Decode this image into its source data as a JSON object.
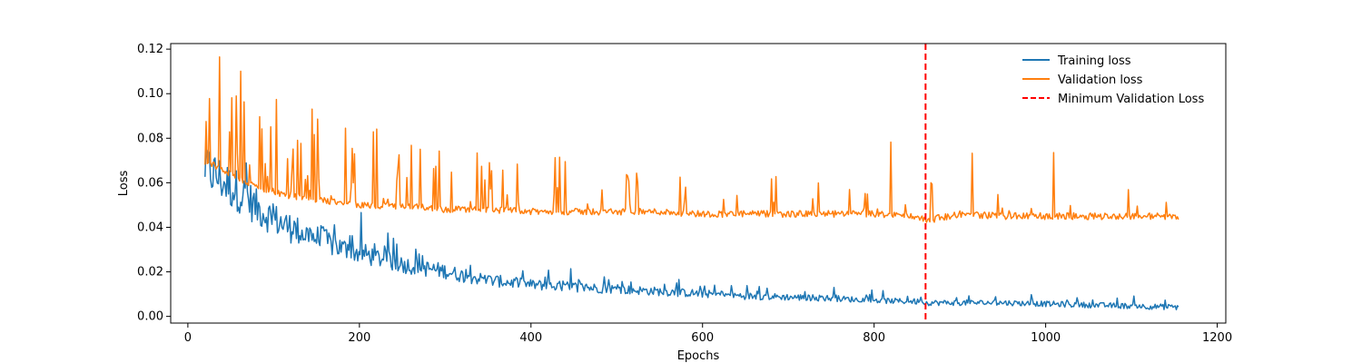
{
  "chart_data": {
    "type": "line",
    "title": "",
    "xlabel": "Epochs",
    "ylabel": "Loss",
    "xlim": [
      -20,
      1210
    ],
    "ylim": [
      -0.003,
      0.1225
    ],
    "xticks": [
      0,
      200,
      400,
      600,
      800,
      1000,
      1200
    ],
    "yticks": [
      0.0,
      0.02,
      0.04,
      0.06,
      0.08,
      0.1,
      0.12
    ],
    "xtick_labels": [
      "0",
      "200",
      "400",
      "600",
      "800",
      "1000",
      "1200"
    ],
    "ytick_labels": [
      "0.00",
      "0.02",
      "0.04",
      "0.06",
      "0.08",
      "0.10",
      "0.12"
    ],
    "grid": false,
    "legend_position": "upper right",
    "series": [
      {
        "name": "Training loss",
        "color": "#1f77b4",
        "x": [
          20,
          30,
          40,
          50,
          60,
          70,
          80,
          100,
          120,
          140,
          160,
          180,
          200,
          220,
          250,
          280,
          300,
          320,
          350,
          400,
          450,
          500,
          550,
          600,
          650,
          700,
          750,
          800,
          850,
          860,
          900,
          950,
          1000,
          1050,
          1100,
          1155
        ],
        "y": [
          0.066,
          0.063,
          0.06,
          0.057,
          0.055,
          0.052,
          0.048,
          0.043,
          0.039,
          0.036,
          0.033,
          0.03,
          0.028,
          0.026,
          0.023,
          0.021,
          0.02,
          0.018,
          0.016,
          0.014,
          0.013,
          0.012,
          0.011,
          0.01,
          0.009,
          0.0085,
          0.008,
          0.007,
          0.0065,
          0.006,
          0.006,
          0.006,
          0.0055,
          0.005,
          0.0045,
          0.004
        ]
      },
      {
        "name": "Validation loss",
        "color": "#ff7f0e",
        "x": [
          20,
          30,
          40,
          50,
          60,
          70,
          80,
          100,
          120,
          140,
          160,
          180,
          200,
          220,
          250,
          280,
          300,
          320,
          350,
          400,
          450,
          500,
          550,
          600,
          650,
          700,
          750,
          800,
          850,
          860,
          900,
          950,
          1000,
          1050,
          1100,
          1155
        ],
        "y": [
          0.068,
          0.068,
          0.066,
          0.064,
          0.062,
          0.06,
          0.058,
          0.056,
          0.054,
          0.053,
          0.052,
          0.051,
          0.05,
          0.05,
          0.049,
          0.049,
          0.048,
          0.048,
          0.048,
          0.047,
          0.047,
          0.047,
          0.047,
          0.046,
          0.046,
          0.046,
          0.046,
          0.046,
          0.045,
          0.043,
          0.046,
          0.045,
          0.045,
          0.045,
          0.045,
          0.045
        ]
      }
    ],
    "vlines": [
      {
        "name": "Minimum Validation Loss",
        "x": 860,
        "color": "#ff0000",
        "style": "dashed"
      }
    ]
  }
}
